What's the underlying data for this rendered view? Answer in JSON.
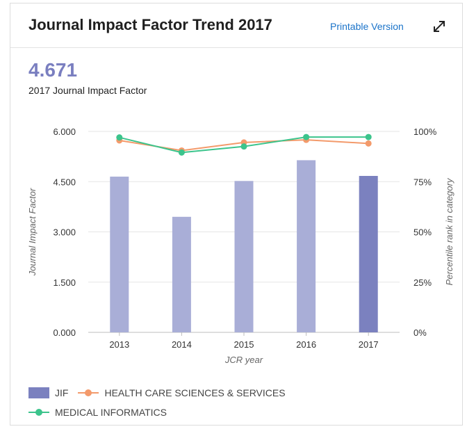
{
  "header": {
    "title": "Journal Impact Factor Trend 2017",
    "printable_label": "Printable Version",
    "expand_icon": "expand-arrows-icon"
  },
  "summary": {
    "value": "4.671",
    "label": "2017 Journal Impact Factor"
  },
  "colors": {
    "jif_bar": "#a9aed7",
    "jif_bar_current": "#7b81bf",
    "health_care": "#f39a6b",
    "medical_informatics": "#3cc48c",
    "grid": "#e6e6e6"
  },
  "chart_data": {
    "type": "bar",
    "categories": [
      "2013",
      "2014",
      "2015",
      "2016",
      "2017"
    ],
    "series": [
      {
        "name": "JIF",
        "axis": "left",
        "type": "bar",
        "values": [
          4.65,
          3.45,
          4.52,
          5.14,
          4.671
        ]
      },
      {
        "name": "HEALTH CARE SCIENCES & SERVICES",
        "axis": "right",
        "type": "line",
        "values": [
          95.5,
          90.5,
          94.5,
          95.8,
          94.0
        ]
      },
      {
        "name": "MEDICAL INFORMATICS",
        "axis": "right",
        "type": "line",
        "values": [
          97.0,
          89.5,
          92.5,
          97.2,
          97.2
        ]
      }
    ],
    "xlabel": "JCR year",
    "ylabel": "Journal Impact Factor",
    "y2label": "Percentile rank in category",
    "ylim": [
      0,
      6
    ],
    "y2lim": [
      0,
      100
    ],
    "yticks": [
      "0.000",
      "1.500",
      "3.000",
      "4.500",
      "6.000"
    ],
    "y2ticks": [
      "0%",
      "25%",
      "50%",
      "75%",
      "100%"
    ],
    "highlight_category": "2017",
    "grid": true,
    "legend_position": "bottom"
  }
}
